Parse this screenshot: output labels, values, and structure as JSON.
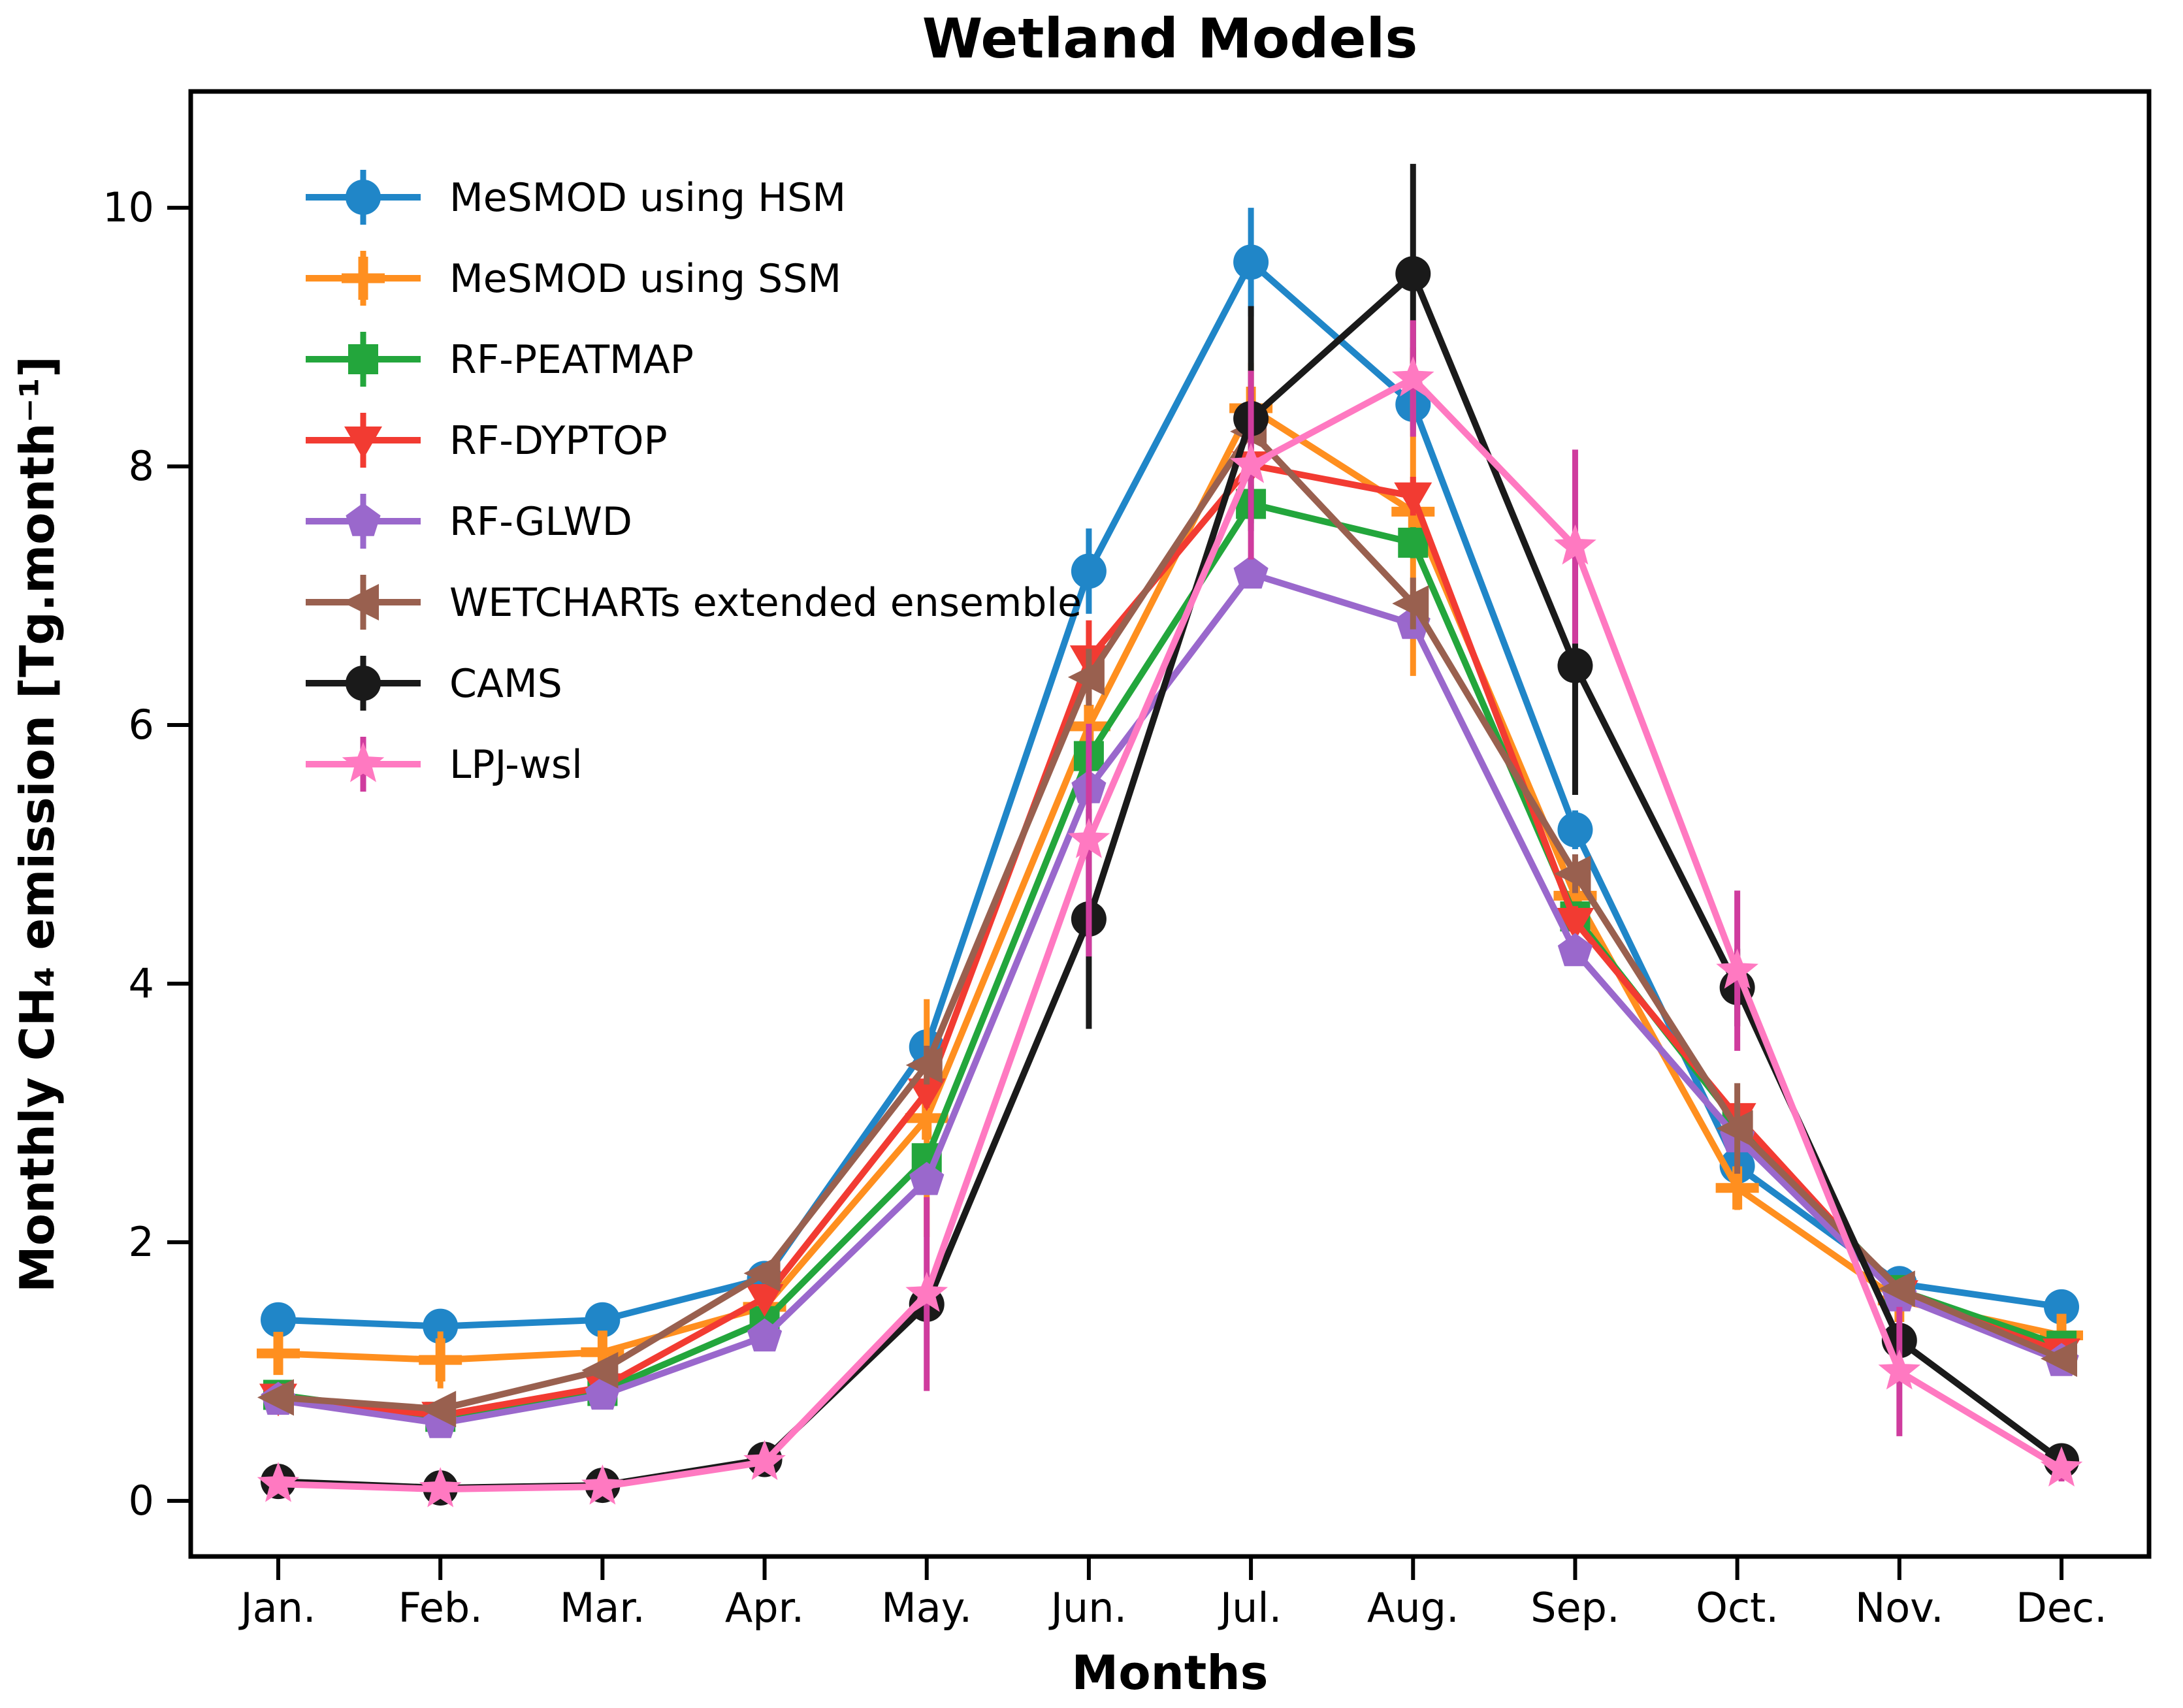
{
  "chart": {
    "title": "Wetland Models",
    "xlabel": "Months",
    "ylabel": "Monthly CH₄ emission [Tg.month⁻¹]"
  },
  "chart_data": {
    "type": "line",
    "title": "Wetland Models",
    "xlabel": "Months",
    "ylabel": "Monthly CH4 emission [Tg.month^-1]",
    "categories": [
      "Jan.",
      "Feb.",
      "Mar.",
      "Apr.",
      "May.",
      "Jun.",
      "Jul.",
      "Aug.",
      "Sep.",
      "Oct.",
      "Nov.",
      "Dec."
    ],
    "yticks": [
      0,
      2,
      4,
      6,
      8,
      10
    ],
    "ylim": [
      -0.43,
      10.9
    ],
    "grid": false,
    "legend_position": "upper left",
    "series": [
      {
        "name": "MeSMOD using HSM",
        "color": "#2086c8",
        "marker": "circle",
        "values": [
          1.4,
          1.35,
          1.4,
          1.72,
          3.51,
          7.19,
          9.58,
          8.48,
          5.19,
          2.59,
          1.68,
          1.5
        ],
        "errors": [
          0.06,
          0.06,
          0.06,
          0.07,
          0.13,
          0.33,
          0.42,
          0.2,
          0.15,
          0.08,
          0.06,
          0.06
        ]
      },
      {
        "name": "MeSMOD using SSM",
        "color": "#ff8f1f",
        "marker": "plus",
        "values": [
          1.14,
          1.09,
          1.15,
          1.5,
          2.96,
          5.99,
          8.45,
          7.65,
          4.68,
          2.42,
          1.55,
          1.28
        ],
        "errors": [
          0.13,
          0.22,
          0.12,
          0.12,
          0.92,
          0.3,
          0.35,
          1.27,
          0.25,
          0.17,
          0.12,
          0.08
        ]
      },
      {
        "name": "RF-PEATMAP",
        "color": "#23a63c",
        "marker": "square",
        "values": [
          0.82,
          0.65,
          0.85,
          1.39,
          2.65,
          5.76,
          7.71,
          7.41,
          4.52,
          2.92,
          1.63,
          1.2
        ],
        "errors": [
          0.05,
          0.05,
          0.05,
          0.06,
          0.1,
          0.2,
          0.15,
          0.12,
          0.1,
          0.08,
          0.05,
          0.05
        ]
      },
      {
        "name": "RF-DYPTOP",
        "color": "#f23b32",
        "marker": "triangle-down",
        "values": [
          0.8,
          0.66,
          0.88,
          1.57,
          3.16,
          6.51,
          8.01,
          7.77,
          4.48,
          2.97,
          1.6,
          1.15
        ],
        "errors": [
          0.05,
          0.05,
          0.06,
          0.08,
          0.12,
          0.3,
          0.2,
          0.15,
          0.12,
          0.1,
          0.06,
          0.05
        ]
      },
      {
        "name": "RF-GLWD",
        "color": "#9a68cc",
        "marker": "pentagon",
        "values": [
          0.78,
          0.6,
          0.82,
          1.27,
          2.48,
          5.51,
          7.17,
          6.78,
          4.25,
          2.81,
          1.58,
          1.08
        ],
        "errors": [
          0.05,
          0.05,
          0.05,
          0.06,
          0.08,
          0.12,
          0.1,
          0.1,
          0.08,
          0.06,
          0.05,
          0.05
        ]
      },
      {
        "name": "WETCHARTs extended ensemble",
        "color": "#99604f",
        "marker": "triangle-left",
        "values": [
          0.8,
          0.71,
          1.01,
          1.76,
          3.37,
          6.37,
          8.27,
          6.94,
          4.85,
          2.88,
          1.64,
          1.1
        ],
        "errors": [
          0.05,
          0.06,
          0.06,
          0.08,
          0.15,
          0.22,
          0.3,
          0.2,
          0.15,
          0.35,
          0.06,
          0.06
        ]
      },
      {
        "name": "CAMS",
        "color": "#1a1a1a",
        "marker": "circle",
        "values": [
          0.15,
          0.1,
          0.12,
          0.32,
          1.52,
          4.5,
          8.37,
          9.49,
          6.46,
          3.97,
          1.24,
          0.31
        ],
        "errors": [
          0.03,
          0.03,
          0.03,
          0.04,
          0.1,
          0.85,
          0.87,
          0.85,
          1.0,
          0.3,
          0.1,
          0.05
        ]
      },
      {
        "name": "LPJ-wsl",
        "color": "#ff79c1",
        "ecolor": "#cf3c9e",
        "marker": "star",
        "values": [
          0.13,
          0.09,
          0.11,
          0.3,
          1.6,
          5.11,
          8.01,
          8.68,
          7.38,
          4.1,
          1.0,
          0.25
        ],
        "errors": [
          0.05,
          0.04,
          0.04,
          0.06,
          0.75,
          0.9,
          0.73,
          0.45,
          0.75,
          0.62,
          0.5,
          0.1
        ]
      }
    ]
  }
}
